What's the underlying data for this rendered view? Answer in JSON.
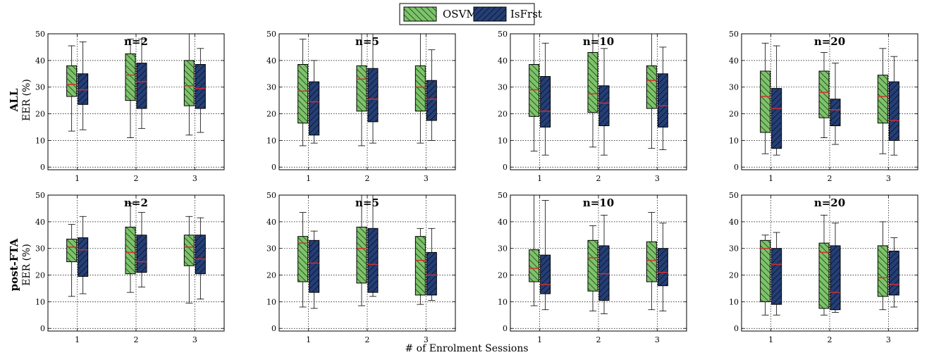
{
  "legend": {
    "items": [
      {
        "label": "OSVM",
        "color": "#7dc36b"
      },
      {
        "label": "IsFrst",
        "color": "#243f77"
      }
    ]
  },
  "xlabel": "# of Enrolment Sessions",
  "rows": [
    {
      "label": "ALL",
      "ylabel": "EER (%)"
    },
    {
      "label": "post-FTA",
      "ylabel": "EER (%)"
    }
  ],
  "colors": {
    "osvm": "#7dc36b",
    "isfrst": "#243f77",
    "median": "#d03030",
    "hatch": "#000000"
  },
  "chart_data": [
    {
      "type": "box",
      "row": "ALL",
      "title": "n=2",
      "categories": [
        "1",
        "2",
        "3"
      ],
      "ylim": [
        0,
        50
      ],
      "yticks": [
        0,
        10,
        20,
        30,
        40,
        50
      ],
      "grid": true,
      "series": [
        {
          "name": "OSVM",
          "boxes": [
            {
              "whislo": 13.5,
              "q1": 26.5,
              "med": 31,
              "q3": 38,
              "whishi": 45.5
            },
            {
              "whislo": 11,
              "q1": 25,
              "med": 34.5,
              "q3": 42.5,
              "whishi": 48
            },
            {
              "whislo": 12,
              "q1": 23,
              "med": 30.5,
              "q3": 40,
              "whishi": 50
            }
          ]
        },
        {
          "name": "IsFrst",
          "boxes": [
            {
              "whislo": 14,
              "q1": 23.5,
              "med": 29,
              "q3": 35,
              "whishi": 47
            },
            {
              "whislo": 14.5,
              "q1": 22,
              "med": 32,
              "q3": 39,
              "whishi": 48
            },
            {
              "whislo": 13,
              "q1": 22,
              "med": 29.5,
              "q3": 38.5,
              "whishi": 44.5
            }
          ]
        }
      ]
    },
    {
      "type": "box",
      "row": "ALL",
      "title": "n=5",
      "categories": [
        "1",
        "2",
        "3"
      ],
      "ylim": [
        0,
        50
      ],
      "yticks": [
        0,
        10,
        20,
        30,
        40,
        50
      ],
      "grid": true,
      "series": [
        {
          "name": "OSVM",
          "boxes": [
            {
              "whislo": 8,
              "q1": 16.5,
              "med": 28.5,
              "q3": 38.5,
              "whishi": 48
            },
            {
              "whislo": 8,
              "q1": 21,
              "med": 33,
              "q3": 38,
              "whishi": 50
            },
            {
              "whislo": 9,
              "q1": 21,
              "med": 30,
              "q3": 38,
              "whishi": 50
            }
          ]
        },
        {
          "name": "IsFrst",
          "boxes": [
            {
              "whislo": 9,
              "q1": 12,
              "med": 24.5,
              "q3": 32,
              "whishi": 40
            },
            {
              "whislo": 9,
              "q1": 17,
              "med": 25.5,
              "q3": 37,
              "whishi": 50
            },
            {
              "whislo": 10,
              "q1": 17.5,
              "med": 25.5,
              "q3": 32.5,
              "whishi": 44
            }
          ]
        }
      ]
    },
    {
      "type": "box",
      "row": "ALL",
      "title": "n=10",
      "categories": [
        "1",
        "2",
        "3"
      ],
      "ylim": [
        0,
        50
      ],
      "yticks": [
        0,
        10,
        20,
        30,
        40,
        50
      ],
      "grid": true,
      "series": [
        {
          "name": "OSVM",
          "boxes": [
            {
              "whislo": 6,
              "q1": 19,
              "med": 29,
              "q3": 38.5,
              "whishi": 50
            },
            {
              "whislo": 7.5,
              "q1": 20.5,
              "med": 27.5,
              "q3": 43,
              "whishi": 50
            },
            {
              "whislo": 7,
              "q1": 22,
              "med": 32.5,
              "q3": 38,
              "whishi": 50
            }
          ]
        },
        {
          "name": "IsFrst",
          "boxes": [
            {
              "whislo": 4.5,
              "q1": 15,
              "med": 21,
              "q3": 34,
              "whishi": 46.5
            },
            {
              "whislo": 4.5,
              "q1": 15.5,
              "med": 24,
              "q3": 30.5,
              "whishi": 44.5
            },
            {
              "whislo": 6.5,
              "q1": 15,
              "med": 23,
              "q3": 35,
              "whishi": 45
            }
          ]
        }
      ]
    },
    {
      "type": "box",
      "row": "ALL",
      "title": "n=20",
      "categories": [
        "1",
        "2",
        "3"
      ],
      "ylim": [
        0,
        50
      ],
      "yticks": [
        0,
        10,
        20,
        30,
        40,
        50
      ],
      "grid": true,
      "series": [
        {
          "name": "OSVM",
          "boxes": [
            {
              "whislo": 5,
              "q1": 13,
              "med": 26.5,
              "q3": 36,
              "whishi": 46.5
            },
            {
              "whislo": 11,
              "q1": 18.5,
              "med": 28,
              "q3": 36,
              "whishi": 43
            },
            {
              "whislo": 5,
              "q1": 16.5,
              "med": 26.5,
              "q3": 34.5,
              "whishi": 44.5
            }
          ]
        },
        {
          "name": "IsFrst",
          "boxes": [
            {
              "whislo": 4.5,
              "q1": 7,
              "med": 22,
              "q3": 29.5,
              "whishi": 45.5
            },
            {
              "whislo": 8.5,
              "q1": 15.5,
              "med": 21.5,
              "q3": 25.5,
              "whishi": 39
            },
            {
              "whislo": 4.5,
              "q1": 10,
              "med": 17.5,
              "q3": 32,
              "whishi": 41.5
            }
          ]
        }
      ]
    },
    {
      "type": "box",
      "row": "post-FTA",
      "title": "n=2",
      "categories": [
        "1",
        "2",
        "3"
      ],
      "ylim": [
        0,
        50
      ],
      "yticks": [
        0,
        10,
        20,
        30,
        40,
        50
      ],
      "grid": true,
      "series": [
        {
          "name": "OSVM",
          "boxes": [
            {
              "whislo": 12,
              "q1": 25,
              "med": 30.5,
              "q3": 33.5,
              "whishi": 39
            },
            {
              "whislo": 13.5,
              "q1": 20.5,
              "med": 28.5,
              "q3": 38,
              "whishi": 47
            },
            {
              "whislo": 9.5,
              "q1": 23.5,
              "med": 30.5,
              "q3": 35,
              "whishi": 42
            }
          ]
        },
        {
          "name": "IsFrst",
          "boxes": [
            {
              "whislo": 13,
              "q1": 19.5,
              "med": 29.5,
              "q3": 34,
              "whishi": 42
            },
            {
              "whislo": 15.5,
              "q1": 21,
              "med": 25,
              "q3": 35,
              "whishi": 43.5
            },
            {
              "whislo": 11,
              "q1": 20.5,
              "med": 26,
              "q3": 35,
              "whishi": 41.5
            }
          ]
        }
      ]
    },
    {
      "type": "box",
      "row": "post-FTA",
      "title": "n=5",
      "categories": [
        "1",
        "2",
        "3"
      ],
      "ylim": [
        0,
        50
      ],
      "yticks": [
        0,
        10,
        20,
        30,
        40,
        50
      ],
      "grid": true,
      "series": [
        {
          "name": "OSVM",
          "boxes": [
            {
              "whislo": 8,
              "q1": 17.5,
              "med": 32,
              "q3": 34.5,
              "whishi": 43.5
            },
            {
              "whislo": 8.5,
              "q1": 17,
              "med": 30,
              "q3": 38,
              "whishi": 50
            },
            {
              "whislo": 9,
              "q1": 12.5,
              "med": 25.5,
              "q3": 34.5,
              "whishi": 37.5
            }
          ]
        },
        {
          "name": "IsFrst",
          "boxes": [
            {
              "whislo": 7.5,
              "q1": 13.5,
              "med": 24.5,
              "q3": 33,
              "whishi": 36.5
            },
            {
              "whislo": 12,
              "q1": 13.5,
              "med": 24,
              "q3": 37.5,
              "whishi": 50
            },
            {
              "whislo": 10.5,
              "q1": 12.5,
              "med": 20,
              "q3": 28.5,
              "whishi": 37.5
            }
          ]
        }
      ]
    },
    {
      "type": "box",
      "row": "post-FTA",
      "title": "n=10",
      "categories": [
        "1",
        "2",
        "3"
      ],
      "ylim": [
        0,
        50
      ],
      "yticks": [
        0,
        10,
        20,
        30,
        40,
        50
      ],
      "grid": true,
      "series": [
        {
          "name": "OSVM",
          "boxes": [
            {
              "whislo": 8.5,
              "q1": 17.5,
              "med": 22.5,
              "q3": 29.5,
              "whishi": 50
            },
            {
              "whislo": 6.5,
              "q1": 14,
              "med": 26.5,
              "q3": 33,
              "whishi": 38.5
            },
            {
              "whislo": 7,
              "q1": 17.5,
              "med": 25.5,
              "q3": 32.5,
              "whishi": 43.5
            }
          ]
        },
        {
          "name": "IsFrst",
          "boxes": [
            {
              "whislo": 7,
              "q1": 13,
              "med": 16.5,
              "q3": 27.5,
              "whishi": 48
            },
            {
              "whislo": 5.5,
              "q1": 10.5,
              "med": 20.5,
              "q3": 31,
              "whishi": 42.5
            },
            {
              "whislo": 6.5,
              "q1": 16,
              "med": 21,
              "q3": 30,
              "whishi": 39.5
            }
          ]
        }
      ]
    },
    {
      "type": "box",
      "row": "post-FTA",
      "title": "n=20",
      "categories": [
        "1",
        "2",
        "3"
      ],
      "ylim": [
        0,
        50
      ],
      "yticks": [
        0,
        10,
        20,
        30,
        40,
        50
      ],
      "grid": true,
      "series": [
        {
          "name": "OSVM",
          "boxes": [
            {
              "whislo": 5,
              "q1": 10,
              "med": 30,
              "q3": 33,
              "whishi": 35
            },
            {
              "whislo": 5,
              "q1": 7.5,
              "med": 28.5,
              "q3": 32,
              "whishi": 42.5
            },
            {
              "whislo": 7,
              "q1": 12,
              "med": 19,
              "q3": 31,
              "whishi": 40
            }
          ]
        },
        {
          "name": "IsFrst",
          "boxes": [
            {
              "whislo": 5,
              "q1": 9,
              "med": 24,
              "q3": 30,
              "whishi": 36
            },
            {
              "whislo": 6,
              "q1": 7,
              "med": 13.5,
              "q3": 31,
              "whishi": 39.5
            },
            {
              "whislo": 8,
              "q1": 12.5,
              "med": 16.5,
              "q3": 29,
              "whishi": 34
            }
          ]
        }
      ]
    }
  ]
}
